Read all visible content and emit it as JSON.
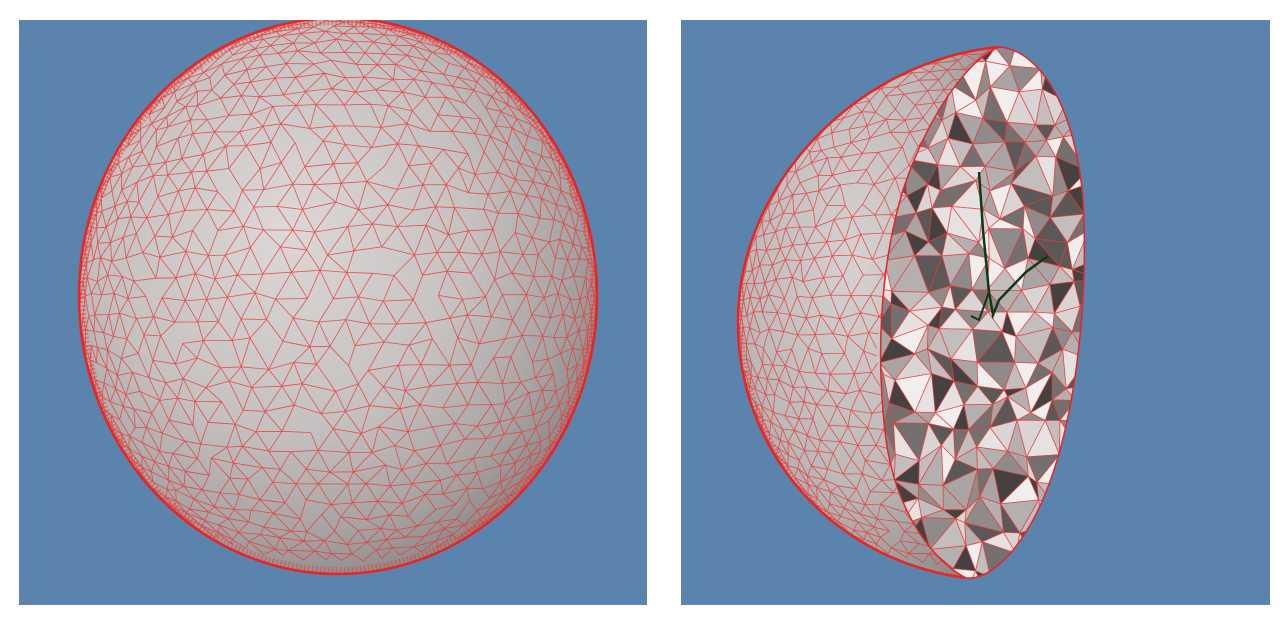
{
  "figure": {
    "panels": [
      {
        "id": "full-sphere",
        "content": "sphere-surface-mesh"
      },
      {
        "id": "cut-sphere",
        "content": "hemisphere-cutaway-tetrahedral-mesh"
      }
    ]
  },
  "colors": {
    "background": "#5a84ae",
    "page": "#ffffff",
    "mesh_edges": "#e83a3a",
    "surface_light": "#d7d3d3",
    "surface_mid": "#aeaaaa",
    "surface_dark": "#7a7676",
    "interior_dark": "#3c3a3a",
    "path_line": "#0f3a18"
  },
  "icons": {
    "left": "sphere-mesh-icon",
    "right": "cutaway-mesh-icon"
  }
}
